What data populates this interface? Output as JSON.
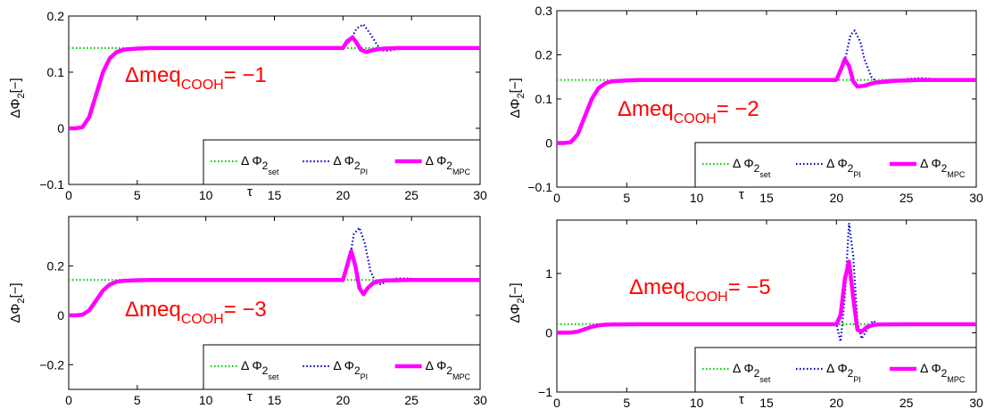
{
  "chart_data": [
    {
      "type": "line",
      "xlim": [
        0,
        30
      ],
      "ylim": [
        -0.1,
        0.2
      ],
      "xticks": [
        "0",
        "5",
        "10",
        "15",
        "20",
        "25",
        "30"
      ],
      "yticks": [
        -0.1,
        0,
        0.1,
        0.2
      ],
      "ytick_labels": [
        "−0.1",
        "0",
        "0.1",
        "0.2"
      ],
      "xlabel": "τ",
      "ylabel_main": "ΔΦ",
      "ylabel_sub": "2",
      "ylabel_unit": "[−]",
      "annotation": {
        "prefix": "Δmeq",
        "sub": "COOH",
        "suffix": "= −1"
      },
      "setpoint": 0.143,
      "series": [
        {
          "name": "set",
          "style": "green-dotted",
          "x": [
            0,
            30
          ],
          "y": [
            0.143,
            0.143
          ]
        },
        {
          "name": "PI",
          "style": "blue-dotted",
          "x": [
            0,
            0.5,
            1,
            1.5,
            2,
            2.5,
            3,
            3.5,
            4,
            5,
            6,
            8,
            10,
            12,
            15,
            18,
            20,
            20.5,
            21,
            21.5,
            22,
            22.5,
            23,
            23.5,
            24,
            25,
            26,
            28,
            30
          ],
          "y": [
            0,
            0,
            0.002,
            0.02,
            0.06,
            0.1,
            0.125,
            0.136,
            0.14,
            0.142,
            0.143,
            0.143,
            0.143,
            0.143,
            0.143,
            0.143,
            0.143,
            0.155,
            0.178,
            0.185,
            0.168,
            0.148,
            0.138,
            0.139,
            0.142,
            0.143,
            0.143,
            0.143,
            0.143
          ]
        },
        {
          "name": "MPC",
          "style": "magenta-solid",
          "x": [
            0,
            0.5,
            1,
            1.5,
            2,
            2.5,
            3,
            3.5,
            4,
            5,
            6,
            8,
            10,
            12,
            15,
            18,
            20,
            20.3,
            20.7,
            21,
            21.3,
            21.7,
            22,
            22.5,
            23,
            24,
            25,
            26,
            28,
            30
          ],
          "y": [
            0,
            0,
            0.002,
            0.02,
            0.06,
            0.1,
            0.125,
            0.136,
            0.14,
            0.142,
            0.143,
            0.143,
            0.143,
            0.143,
            0.143,
            0.143,
            0.143,
            0.155,
            0.162,
            0.152,
            0.14,
            0.136,
            0.138,
            0.141,
            0.142,
            0.143,
            0.143,
            0.143,
            0.143,
            0.143
          ]
        }
      ]
    },
    {
      "type": "line",
      "xlim": [
        0,
        30
      ],
      "ylim": [
        -0.1,
        0.3
      ],
      "xticks": [
        "0",
        "5",
        "10",
        "15",
        "20",
        "25",
        "30"
      ],
      "yticks": [
        -0.1,
        0,
        0.1,
        0.2,
        0.3
      ],
      "ytick_labels": [
        "−0.1",
        "0",
        "0.1",
        "0.2",
        "0.3"
      ],
      "xlabel": "τ",
      "ylabel_main": "ΔΦ",
      "ylabel_sub": "2",
      "ylabel_unit": "[−]",
      "annotation": {
        "prefix": "Δmeq",
        "sub": "COOH",
        "suffix": "= −2"
      },
      "setpoint": 0.143,
      "series": [
        {
          "name": "set",
          "style": "green-dotted",
          "x": [
            0,
            30
          ],
          "y": [
            0.143,
            0.143
          ]
        },
        {
          "name": "PI",
          "style": "blue-dotted",
          "x": [
            0,
            0.5,
            1,
            1.5,
            2,
            2.5,
            3,
            3.5,
            4,
            5,
            6,
            8,
            10,
            15,
            20,
            20.3,
            20.7,
            21,
            21.3,
            21.7,
            22,
            22.5,
            23,
            24,
            25,
            26,
            28,
            30
          ],
          "y": [
            0,
            0,
            0.002,
            0.02,
            0.06,
            0.1,
            0.125,
            0.136,
            0.14,
            0.142,
            0.143,
            0.143,
            0.143,
            0.143,
            0.143,
            0.16,
            0.2,
            0.245,
            0.255,
            0.23,
            0.19,
            0.15,
            0.135,
            0.138,
            0.145,
            0.147,
            0.143,
            0.143
          ]
        },
        {
          "name": "MPC",
          "style": "magenta-solid",
          "x": [
            0,
            0.5,
            1,
            1.5,
            2,
            2.5,
            3,
            3.5,
            4,
            5,
            6,
            8,
            10,
            15,
            20,
            20.3,
            20.6,
            20.9,
            21.2,
            21.5,
            22,
            22.5,
            23,
            24,
            25,
            26,
            28,
            30
          ],
          "y": [
            0,
            0,
            0.002,
            0.02,
            0.06,
            0.1,
            0.125,
            0.136,
            0.14,
            0.142,
            0.143,
            0.143,
            0.143,
            0.143,
            0.143,
            0.165,
            0.19,
            0.175,
            0.14,
            0.128,
            0.13,
            0.135,
            0.138,
            0.141,
            0.142,
            0.143,
            0.143,
            0.143
          ]
        }
      ]
    },
    {
      "type": "line",
      "xlim": [
        0,
        30
      ],
      "ylim": [
        -0.3,
        0.4
      ],
      "xticks": [
        "0",
        "5",
        "10",
        "15",
        "20",
        "25",
        "30"
      ],
      "yticks": [
        -0.2,
        0,
        0.2
      ],
      "ytick_labels": [
        "−0.2",
        "0",
        "0.2"
      ],
      "xlabel": "τ",
      "ylabel_main": "ΔΦ",
      "ylabel_sub": "2",
      "ylabel_unit": "[−]",
      "annotation": {
        "prefix": "Δmeq",
        "sub": "COOH",
        "suffix": "= −3"
      },
      "setpoint": 0.143,
      "series": [
        {
          "name": "set",
          "style": "green-dotted",
          "x": [
            0,
            30
          ],
          "y": [
            0.143,
            0.143
          ]
        },
        {
          "name": "PI",
          "style": "blue-dotted",
          "x": [
            0,
            0.5,
            1,
            1.5,
            2,
            2.5,
            3,
            3.5,
            4,
            5,
            6,
            8,
            10,
            15,
            20,
            20.4,
            20.8,
            21.2,
            21.6,
            22,
            22.4,
            22.8,
            23.2,
            24,
            25,
            26,
            28,
            30
          ],
          "y": [
            0,
            0,
            0.002,
            0.02,
            0.06,
            0.1,
            0.125,
            0.136,
            0.14,
            0.142,
            0.143,
            0.143,
            0.143,
            0.143,
            0.143,
            0.2,
            0.33,
            0.355,
            0.29,
            0.18,
            0.13,
            0.125,
            0.14,
            0.15,
            0.148,
            0.143,
            0.143,
            0.143
          ]
        },
        {
          "name": "MPC",
          "style": "magenta-solid",
          "x": [
            0,
            0.5,
            1,
            1.5,
            2,
            2.5,
            3,
            3.5,
            4,
            5,
            6,
            8,
            10,
            15,
            20,
            20.3,
            20.6,
            20.9,
            21.2,
            21.5,
            21.8,
            22.2,
            22.6,
            23,
            24,
            25,
            26,
            28,
            30
          ],
          "y": [
            0,
            0,
            0.002,
            0.02,
            0.06,
            0.1,
            0.125,
            0.136,
            0.14,
            0.142,
            0.143,
            0.143,
            0.143,
            0.143,
            0.143,
            0.2,
            0.26,
            0.2,
            0.11,
            0.085,
            0.11,
            0.13,
            0.138,
            0.141,
            0.142,
            0.143,
            0.143,
            0.143,
            0.143
          ]
        }
      ]
    },
    {
      "type": "line",
      "xlim": [
        0,
        30
      ],
      "ylim": [
        -1,
        1.9
      ],
      "xticks": [
        "0",
        "5",
        "10",
        "15",
        "20",
        "25",
        "30"
      ],
      "yticks": [
        -1,
        0,
        1
      ],
      "ytick_labels": [
        "−1",
        "0",
        "1"
      ],
      "xlabel": "τ",
      "ylabel_main": "ΔΦ",
      "ylabel_sub": "2",
      "ylabel_unit": "[−]",
      "annotation": {
        "prefix": "Δmeq",
        "sub": "COOH",
        "suffix": "= −5"
      },
      "setpoint": 0.143,
      "series": [
        {
          "name": "set",
          "style": "green-dotted",
          "x": [
            0,
            30
          ],
          "y": [
            0.143,
            0.143
          ]
        },
        {
          "name": "PI",
          "style": "blue-dotted",
          "x": [
            0,
            0.5,
            1,
            1.5,
            2,
            2.5,
            3,
            3.5,
            4,
            5,
            6,
            8,
            10,
            15,
            20,
            20.3,
            20.6,
            20.9,
            21.2,
            21.5,
            21.8,
            22.2,
            22.6,
            23,
            24,
            25,
            26,
            28,
            30
          ],
          "y": [
            0,
            0,
            0.002,
            0.02,
            0.06,
            0.1,
            0.125,
            0.136,
            0.14,
            0.142,
            0.143,
            0.143,
            0.143,
            0.143,
            0.143,
            -0.15,
            0.6,
            1.85,
            1.3,
            0.2,
            -0.1,
            0.05,
            0.2,
            0.15,
            0.13,
            0.145,
            0.143,
            0.143,
            0.143
          ]
        },
        {
          "name": "MPC",
          "style": "magenta-solid",
          "x": [
            0,
            0.5,
            1,
            1.5,
            2,
            2.5,
            3,
            3.5,
            4,
            5,
            6,
            8,
            10,
            15,
            20,
            20.3,
            20.6,
            20.9,
            21.2,
            21.5,
            21.8,
            22.2,
            22.6,
            23,
            24,
            25,
            26,
            28,
            30
          ],
          "y": [
            0,
            0,
            0.002,
            0.02,
            0.06,
            0.1,
            0.125,
            0.136,
            0.14,
            0.142,
            0.143,
            0.143,
            0.143,
            0.143,
            0.143,
            0.3,
            0.9,
            1.2,
            0.6,
            0.05,
            0.02,
            0.1,
            0.13,
            0.14,
            0.142,
            0.143,
            0.143,
            0.143,
            0.143
          ]
        }
      ]
    }
  ],
  "legend": [
    {
      "label": "Δ Φ",
      "sub1": "2",
      "sub2": "set",
      "color": "#00d000",
      "style": "green-dotted"
    },
    {
      "label": "Δ Φ",
      "sub1": "2",
      "sub2": "PI",
      "color": "#0000cc",
      "style": "blue-dotted"
    },
    {
      "label": "Δ Φ",
      "sub1": "2",
      "sub2": "MPC",
      "color": "#ff00ff",
      "style": "magenta-solid"
    }
  ]
}
